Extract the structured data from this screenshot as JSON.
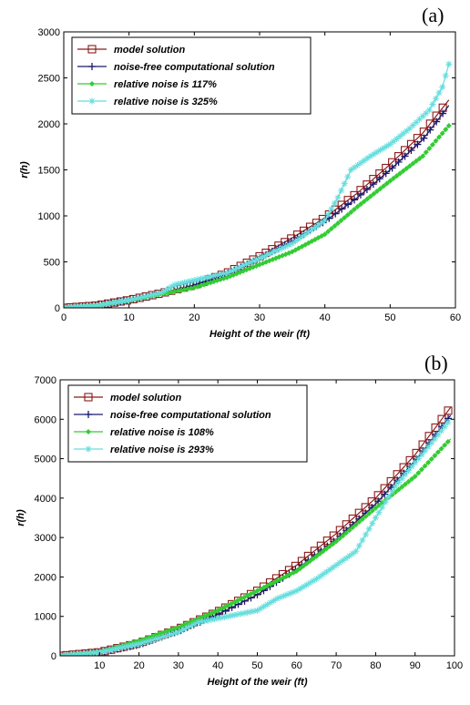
{
  "colors": {
    "model": "#8b1a1a",
    "noise_free": "#1a1a6e",
    "low_noise": "#33cc33",
    "high_noise": "#66dddd"
  },
  "chart_data": [
    {
      "type": "line",
      "panel_label": "(a)",
      "xlabel": "Height of the weir (ft)",
      "ylabel": "r(h)",
      "xlim": [
        0,
        60
      ],
      "ylim": [
        0,
        3000
      ],
      "xticks": [
        0,
        10,
        20,
        30,
        40,
        50,
        60
      ],
      "yticks": [
        0,
        500,
        1000,
        1500,
        2000,
        2500,
        3000
      ],
      "grid": false,
      "legend_position": "top-left",
      "series": [
        {
          "name": "model solution",
          "marker": "square",
          "x": [
            0,
            5,
            10,
            15,
            20,
            25,
            30,
            35,
            40,
            45,
            50,
            55,
            59
          ],
          "y": [
            0,
            25,
            85,
            160,
            250,
            380,
            560,
            760,
            980,
            1250,
            1560,
            1900,
            2260
          ]
        },
        {
          "name": "noise-free computational solution",
          "marker": "plus",
          "x": [
            0,
            5,
            10,
            15,
            20,
            25,
            30,
            35,
            40,
            45,
            50,
            55,
            59
          ],
          "y": [
            0,
            24,
            82,
            155,
            245,
            370,
            540,
            730,
            940,
            1200,
            1500,
            1830,
            2200
          ]
        },
        {
          "name": "relative noise is 117%",
          "marker": "diamond",
          "x": [
            0,
            5,
            10,
            15,
            20,
            25,
            30,
            35,
            40,
            45,
            50,
            55,
            59
          ],
          "y": [
            0,
            24,
            80,
            150,
            220,
            330,
            470,
            610,
            800,
            1100,
            1380,
            1650,
            1980
          ]
        },
        {
          "name": "relative noise is 325%",
          "marker": "asterisk",
          "x": [
            0,
            5,
            10,
            15,
            17,
            20,
            25,
            30,
            35,
            40,
            42,
            44,
            47,
            50,
            53,
            56,
            58,
            59
          ],
          "y": [
            0,
            25,
            85,
            165,
            250,
            300,
            380,
            540,
            700,
            950,
            1200,
            1500,
            1650,
            1780,
            1950,
            2150,
            2400,
            2650
          ]
        }
      ]
    },
    {
      "type": "line",
      "panel_label": "(b)",
      "xlabel": "Height of the weir (ft)",
      "ylabel": "r(h)",
      "xlim": [
        0,
        100
      ],
      "ylim": [
        0,
        7000
      ],
      "xticks": [
        10,
        20,
        30,
        40,
        50,
        60,
        70,
        80,
        90,
        100
      ],
      "yticks": [
        0,
        1000,
        2000,
        3000,
        4000,
        5000,
        6000,
        7000
      ],
      "grid": false,
      "legend_position": "top-left",
      "series": [
        {
          "name": "model solution",
          "marker": "square",
          "x": [
            0,
            10,
            20,
            30,
            40,
            50,
            60,
            70,
            80,
            90,
            99
          ],
          "y": [
            0,
            90,
            320,
            680,
            1120,
            1650,
            2300,
            3100,
            4000,
            5100,
            6300
          ]
        },
        {
          "name": "noise-free computational solution",
          "marker": "plus",
          "x": [
            0,
            10,
            20,
            30,
            40,
            50,
            60,
            70,
            80,
            90,
            99
          ],
          "y": [
            0,
            80,
            280,
            620,
            1050,
            1550,
            2200,
            2950,
            3850,
            4950,
            6100
          ]
        },
        {
          "name": "relative noise is 108%",
          "marker": "diamond",
          "x": [
            0,
            10,
            20,
            30,
            40,
            50,
            60,
            70,
            80,
            90,
            99
          ],
          "y": [
            0,
            100,
            380,
            720,
            1150,
            1650,
            2150,
            2900,
            3750,
            4550,
            5500
          ]
        },
        {
          "name": "relative noise is 293%",
          "marker": "asterisk",
          "x": [
            0,
            10,
            20,
            30,
            35,
            40,
            45,
            50,
            55,
            60,
            65,
            70,
            75,
            80,
            85,
            90,
            95,
            99
          ],
          "y": [
            0,
            90,
            300,
            600,
            850,
            950,
            1050,
            1150,
            1450,
            1650,
            1950,
            2300,
            2650,
            3500,
            4300,
            4900,
            5500,
            6000
          ]
        }
      ]
    }
  ]
}
